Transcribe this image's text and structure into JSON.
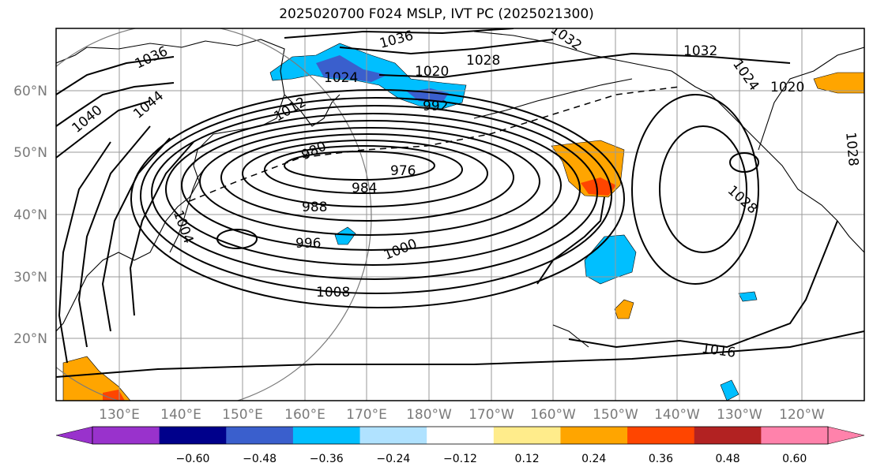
{
  "title": "2025020700 F024 MSLP, IVT PC (2025021300)",
  "lon_labels": [
    "130°E",
    "140°E",
    "150°E",
    "160°E",
    "170°E",
    "180°W",
    "170°W",
    "160°W",
    "150°W",
    "140°W",
    "130°W",
    "120°W"
  ],
  "lat_labels": [
    "60°N",
    "50°N",
    "40°N",
    "30°N",
    "20°N"
  ],
  "contour_labels": [
    "976",
    "984",
    "988",
    "996",
    "1000",
    "1008",
    "1016",
    "1028",
    "980",
    "992",
    "1012",
    "1020",
    "1024",
    "1028",
    "1036",
    "1032",
    "1032",
    "1020",
    "1024",
    "1028",
    "1044",
    "1040",
    "1036",
    "1004"
  ],
  "colorbar": {
    "colors": [
      "#9932cc",
      "#00008b",
      "#3a5fcd",
      "#00bfff",
      "#b0e2ff",
      "#ffffff",
      "#ffec8b",
      "#ffa500",
      "#ff4500",
      "#b22222",
      "#ff82ab"
    ],
    "under_color": "#9932cc",
    "over_color": "#ff82ab",
    "tick_labels": [
      "−0.60",
      "−0.48",
      "−0.36",
      "−0.24",
      "−0.12",
      "0.12",
      "0.24",
      "0.36",
      "0.48",
      "0.60"
    ]
  },
  "chart_data": {
    "type": "heatmap",
    "title": "2025020700 F024 MSLP, IVT PC (2025021300)",
    "x_range": [
      "120°E",
      "110°W"
    ],
    "y_range": [
      "10°N",
      "70°N"
    ],
    "grid": true,
    "mslp_contour_interval_hPa": 4,
    "low_center_hPa": 976,
    "colorbar_levels": [
      -0.6,
      -0.48,
      -0.36,
      -0.24,
      -0.12,
      0.12,
      0.24,
      0.36,
      0.48,
      0.6
    ]
  }
}
